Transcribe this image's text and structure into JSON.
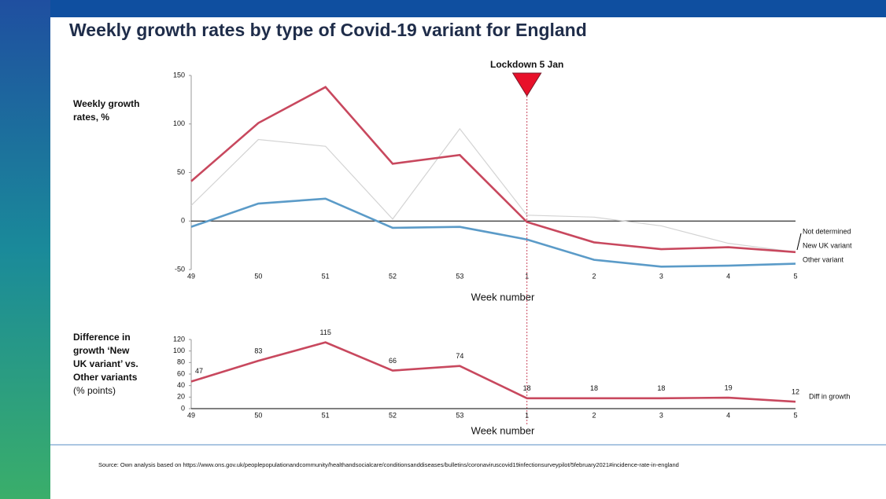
{
  "title": "Weekly growth rates by type of Covid-19 variant for England",
  "source": "Source: Own analysis based on https://www.ons.gov.uk/peoplepopulationandcommunity/healthandsocialcare/conditionsanddiseases/bulletins/coronaviruscovid19infectionsurveypilot/5february2021#incidence-rate-in-england",
  "chart_data": [
    {
      "type": "line",
      "ylabel": [
        "Weekly growth",
        "rates, %"
      ],
      "xlabel": "Week number",
      "annotation": {
        "text": "Lockdown 5 Jan",
        "x": "1"
      },
      "categories": [
        "49",
        "50",
        "51",
        "52",
        "53",
        "1",
        "2",
        "3",
        "4",
        "5"
      ],
      "series": [
        {
          "name": "Not determined",
          "color": "#d3d3d3",
          "values": [
            16,
            84,
            77,
            2,
            95,
            6,
            4,
            -5,
            -23,
            -32
          ]
        },
        {
          "name": "New UK variant",
          "color": "#c8485e",
          "values": [
            41,
            101,
            138,
            59,
            68,
            -1,
            -22,
            -29,
            -27,
            -32
          ]
        },
        {
          "name": "Other variant",
          "color": "#5b9bc8",
          "values": [
            -6,
            18,
            23,
            -7,
            -6,
            -19,
            -40,
            -47,
            -46,
            -44
          ]
        }
      ],
      "ylim": [
        -50,
        150
      ],
      "yticks": [
        -50,
        0,
        50,
        100,
        150
      ]
    },
    {
      "type": "line",
      "ylabel": [
        "Difference in",
        "growth ‘New",
        "UK variant’ vs.",
        "Other variants",
        "(% points)"
      ],
      "xlabel": "Week number",
      "categories": [
        "49",
        "50",
        "51",
        "52",
        "53",
        "1",
        "2",
        "3",
        "4",
        "5"
      ],
      "series": [
        {
          "name": "Diff in growth",
          "color": "#c8485e",
          "values": [
            47,
            83,
            115,
            66,
            74,
            18,
            18,
            18,
            19,
            12
          ]
        }
      ],
      "data_labels": true,
      "ylim": [
        0,
        120
      ],
      "yticks": [
        0,
        20,
        40,
        60,
        80,
        100,
        120
      ]
    }
  ]
}
